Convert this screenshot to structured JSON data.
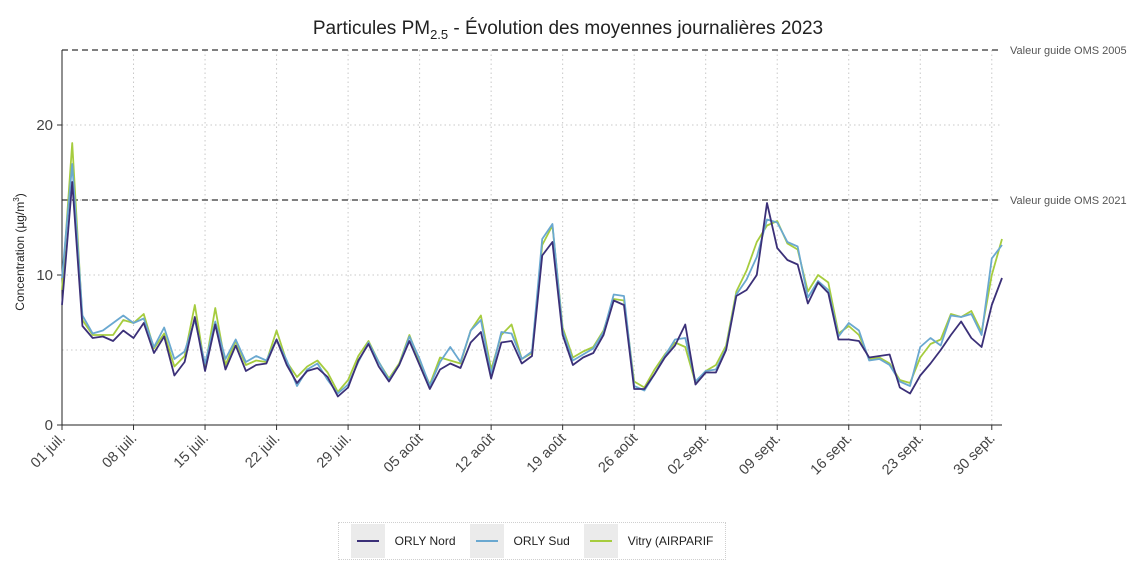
{
  "chart_data": {
    "type": "line",
    "title_main": "Particules PM",
    "title_sub": "2.5",
    "title_rest": " - Évolution des moyennes journalières 2023",
    "ylabel_main": "Concentration (µg/m",
    "ylabel_sup": "3",
    "ylabel_end": ")",
    "ylim": [
      0,
      25
    ],
    "y_ticks": [
      0,
      10,
      20
    ],
    "x_ticks": [
      "01 juil.",
      "08 juil.",
      "15 juil.",
      "22 juil.",
      "29 juil.",
      "05 août",
      "12 août",
      "19 août",
      "26 août",
      "02 sept.",
      "09 sept.",
      "16 sept.",
      "23 sept.",
      "30 sept."
    ],
    "grid": true,
    "legend_position": "bottom",
    "reference_lines": [
      {
        "value": 25,
        "label": "Valeur guide OMS 2005"
      },
      {
        "value": 15,
        "label": "Valeur guide OMS 2021"
      }
    ],
    "x": [
      "2023-07-01",
      "2023-07-02",
      "2023-07-03",
      "2023-07-04",
      "2023-07-05",
      "2023-07-06",
      "2023-07-07",
      "2023-07-08",
      "2023-07-09",
      "2023-07-10",
      "2023-07-11",
      "2023-07-12",
      "2023-07-13",
      "2023-07-14",
      "2023-07-15",
      "2023-07-16",
      "2023-07-17",
      "2023-07-18",
      "2023-07-19",
      "2023-07-20",
      "2023-07-21",
      "2023-07-22",
      "2023-07-23",
      "2023-07-24",
      "2023-07-25",
      "2023-07-26",
      "2023-07-27",
      "2023-07-28",
      "2023-07-29",
      "2023-07-30",
      "2023-07-31",
      "2023-08-01",
      "2023-08-02",
      "2023-08-03",
      "2023-08-04",
      "2023-08-05",
      "2023-08-06",
      "2023-08-07",
      "2023-08-08",
      "2023-08-09",
      "2023-08-10",
      "2023-08-11",
      "2023-08-12",
      "2023-08-13",
      "2023-08-14",
      "2023-08-15",
      "2023-08-16",
      "2023-08-17",
      "2023-08-18",
      "2023-08-19",
      "2023-08-20",
      "2023-08-21",
      "2023-08-22",
      "2023-08-23",
      "2023-08-24",
      "2023-08-25",
      "2023-08-26",
      "2023-08-27",
      "2023-08-28",
      "2023-08-29",
      "2023-08-30",
      "2023-08-31",
      "2023-09-01",
      "2023-09-02",
      "2023-09-03",
      "2023-09-04",
      "2023-09-05",
      "2023-09-06",
      "2023-09-07",
      "2023-09-08",
      "2023-09-09",
      "2023-09-10",
      "2023-09-11",
      "2023-09-12",
      "2023-09-13",
      "2023-09-14",
      "2023-09-15",
      "2023-09-16",
      "2023-09-17",
      "2023-09-18",
      "2023-09-19",
      "2023-09-20",
      "2023-09-21",
      "2023-09-22",
      "2023-09-23",
      "2023-09-24",
      "2023-09-25",
      "2023-09-26",
      "2023-09-27",
      "2023-09-28",
      "2023-09-29",
      "2023-09-30",
      "2023-10-01"
    ],
    "series": [
      {
        "name": "ORLY Nord",
        "color": "#3b3078",
        "values": [
          8.0,
          16.2,
          6.6,
          5.8,
          5.9,
          5.6,
          6.3,
          5.8,
          6.8,
          4.8,
          5.9,
          3.3,
          4.2,
          7.2,
          3.6,
          6.7,
          3.7,
          5.3,
          3.6,
          4.0,
          4.1,
          5.7,
          4.0,
          2.8,
          3.6,
          3.8,
          3.2,
          1.9,
          2.5,
          4.3,
          5.4,
          3.9,
          2.9,
          4.0,
          5.6,
          4.0,
          2.4,
          3.7,
          4.1,
          3.8,
          5.5,
          6.2,
          3.1,
          5.5,
          5.6,
          4.1,
          4.6,
          11.3,
          12.2,
          6.0,
          4.0,
          4.5,
          4.8,
          6.0,
          8.3,
          8.0,
          2.4,
          2.4,
          3.4,
          4.5,
          5.3,
          6.7,
          2.7,
          3.5,
          3.5,
          5.0,
          8.6,
          9.0,
          10.0,
          14.8,
          11.8,
          11.0,
          10.7,
          8.1,
          9.5,
          8.8,
          5.7,
          5.7,
          5.6,
          4.5,
          4.6,
          4.7,
          2.5,
          2.1,
          3.3,
          4.1,
          5.0,
          6.0,
          6.9,
          5.8,
          5.2,
          8.0,
          9.8
        ]
      },
      {
        "name": "ORLY Sud",
        "color": "#6aa8d0",
        "values": [
          9.8,
          17.4,
          7.3,
          6.1,
          6.3,
          6.8,
          7.3,
          6.8,
          7.1,
          5.2,
          6.5,
          4.4,
          4.9,
          7.0,
          4.1,
          6.9,
          4.4,
          5.7,
          4.2,
          4.6,
          4.3,
          5.7,
          4.3,
          2.6,
          3.7,
          4.1,
          3.0,
          2.1,
          2.7,
          4.2,
          5.5,
          4.2,
          3.0,
          4.0,
          5.9,
          4.4,
          2.6,
          4.2,
          5.2,
          4.2,
          6.3,
          7.0,
          3.4,
          6.2,
          6.1,
          4.4,
          4.9,
          12.4,
          13.4,
          6.3,
          4.3,
          4.7,
          5.1,
          6.2,
          8.7,
          8.6,
          2.6,
          2.3,
          3.4,
          4.6,
          5.7,
          5.8,
          2.9,
          3.6,
          3.7,
          5.1,
          8.7,
          9.7,
          11.2,
          13.7,
          13.5,
          12.2,
          11.9,
          8.5,
          9.6,
          9.0,
          5.9,
          6.8,
          6.3,
          4.3,
          4.4,
          4.0,
          2.9,
          2.6,
          5.2,
          5.8,
          5.3,
          7.3,
          7.2,
          7.4,
          6.0,
          11.1,
          12.0
        ]
      },
      {
        "name": "Vitry (AIRPARIF",
        "color": "#a6cc3e",
        "values": [
          9.0,
          18.8,
          7.0,
          6.0,
          6.0,
          6.0,
          7.0,
          6.8,
          7.4,
          5.1,
          6.1,
          3.9,
          4.6,
          8.0,
          3.8,
          7.8,
          4.0,
          5.6,
          4.0,
          4.3,
          4.2,
          6.3,
          4.2,
          3.2,
          3.9,
          4.3,
          3.5,
          2.2,
          3.0,
          4.6,
          5.6,
          4.2,
          3.1,
          4.1,
          6.0,
          4.2,
          2.7,
          4.5,
          4.3,
          4.1,
          6.3,
          7.3,
          3.7,
          6.0,
          6.7,
          4.4,
          4.8,
          12.0,
          13.3,
          6.5,
          4.5,
          4.9,
          5.2,
          6.3,
          8.4,
          8.3,
          2.9,
          2.5,
          3.7,
          4.7,
          5.5,
          5.2,
          2.8,
          3.6,
          4.0,
          5.3,
          8.9,
          10.3,
          12.2,
          13.3,
          13.6,
          12.1,
          11.7,
          8.9,
          10.0,
          9.5,
          6.1,
          6.6,
          6.0,
          4.4,
          4.5,
          4.1,
          3.0,
          2.8,
          4.5,
          5.4,
          5.7,
          7.4,
          7.2,
          7.6,
          6.2,
          10.0,
          12.4
        ]
      }
    ]
  }
}
